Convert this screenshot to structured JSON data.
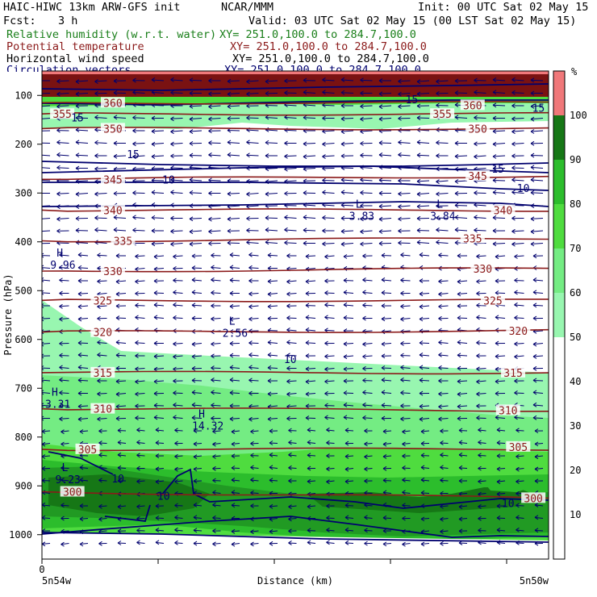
{
  "header": {
    "model": "HAIC-HIWC 13km ARW-GFS init",
    "center": "NCAR/MMM",
    "init": "Init: 00 UTC Sat 02 May 15",
    "fcst_label": "Fcst:",
    "fcst_value": "3 h",
    "valid": "Valid: 03 UTC Sat 02 May 15 (00 LST Sat 02 May 15)",
    "fields": [
      {
        "name": "Relative humidity (w.r.t. water)",
        "xy": "XY= 251.0,100.0 to 284.7,100.0"
      },
      {
        "name": "Potential temperature",
        "xy": "XY= 251.0,100.0 to 284.7,100.0"
      },
      {
        "name": "Horizontal wind speed",
        "xy": "XY= 251.0,100.0 to 284.7,100.0"
      },
      {
        "name": "Circulation vectors",
        "xy": "XY= 251.0,100.0 to 284.7,100.0"
      }
    ]
  },
  "colors": {
    "rh_green_ramp": [
      "#98f6b0",
      "#74ec83",
      "#4fdc3f",
      "#2cbd2c",
      "#219a23",
      "#167716"
    ],
    "rh_high": [
      "#7a1212",
      "#f0787a"
    ],
    "theta": "#8b1a1a",
    "wind": "#00006e",
    "text_black": "#000000"
  },
  "chart_data": {
    "type": "cross-section",
    "x_axis": {
      "label": "Distance (km)",
      "ticks": [
        "0"
      ],
      "left_label": "5n54w",
      "right_label": "5n50w"
    },
    "y_axis": {
      "label": "Pressure (hPa)",
      "ticks": [
        100,
        200,
        300,
        400,
        500,
        600,
        700,
        800,
        900,
        1000
      ],
      "ylim": [
        1050,
        50
      ]
    },
    "colorbar": {
      "unit": "%",
      "ticks": [
        10,
        20,
        30,
        40,
        50,
        60,
        70,
        80,
        90,
        100
      ]
    },
    "theta_contours": [
      {
        "label": "300",
        "p_left": 912,
        "p_right": 925,
        "label_positions": [
          {
            "x": 0.06,
            "p": 912
          },
          {
            "x": 0.97,
            "p": 925
          }
        ]
      },
      {
        "label": "305",
        "p_left": 825,
        "p_right": 825,
        "label_positions": [
          {
            "x": 0.09,
            "p": 825
          },
          {
            "x": 0.94,
            "p": 820
          }
        ]
      },
      {
        "label": "310",
        "p_left": 742,
        "p_right": 745,
        "label_positions": [
          {
            "x": 0.12,
            "p": 742
          },
          {
            "x": 0.92,
            "p": 745
          }
        ]
      },
      {
        "label": "315",
        "p_left": 668,
        "p_right": 668,
        "label_positions": [
          {
            "x": 0.12,
            "p": 668
          },
          {
            "x": 0.93,
            "p": 668
          }
        ]
      },
      {
        "label": "320",
        "p_left": 585,
        "p_right": 582,
        "label_positions": [
          {
            "x": 0.12,
            "p": 585
          },
          {
            "x": 0.94,
            "p": 582
          }
        ]
      },
      {
        "label": "325",
        "p_left": 520,
        "p_right": 520,
        "label_positions": [
          {
            "x": 0.12,
            "p": 520
          },
          {
            "x": 0.89,
            "p": 520
          }
        ]
      },
      {
        "label": "330",
        "p_left": 460,
        "p_right": 455,
        "label_positions": [
          {
            "x": 0.14,
            "p": 460
          },
          {
            "x": 0.87,
            "p": 455
          }
        ]
      },
      {
        "label": "335",
        "p_left": 398,
        "p_right": 393,
        "label_positions": [
          {
            "x": 0.16,
            "p": 398
          },
          {
            "x": 0.85,
            "p": 393
          }
        ]
      },
      {
        "label": "340",
        "p_left": 335,
        "p_right": 335,
        "label_positions": [
          {
            "x": 0.14,
            "p": 335
          },
          {
            "x": 0.91,
            "p": 335
          }
        ]
      },
      {
        "label": "345",
        "p_left": 272,
        "p_right": 265,
        "label_positions": [
          {
            "x": 0.14,
            "p": 272
          },
          {
            "x": 0.86,
            "p": 265
          }
        ]
      },
      {
        "label": "350",
        "p_left": 168,
        "p_right": 168,
        "label_positions": [
          {
            "x": 0.14,
            "p": 168
          },
          {
            "x": 0.86,
            "p": 168
          }
        ]
      },
      {
        "label": "355",
        "p_left": 138,
        "p_right": 138,
        "label_positions": [
          {
            "x": 0.04,
            "p": 138
          },
          {
            "x": 0.79,
            "p": 138
          }
        ]
      },
      {
        "label": "360",
        "p_left": 115,
        "p_right": 115,
        "label_positions": [
          {
            "x": 0.14,
            "p": 115
          },
          {
            "x": 0.85,
            "p": 120
          }
        ]
      }
    ],
    "wind_contour_labels": [
      {
        "label": "15",
        "x": 0.07,
        "p": 145
      },
      {
        "label": "15",
        "x": 0.18,
        "p": 220
      },
      {
        "label": "10",
        "x": 0.25,
        "p": 272
      },
      {
        "label": "15",
        "x": 0.73,
        "p": 108
      },
      {
        "label": "15",
        "x": 0.98,
        "p": 125
      },
      {
        "label": "15",
        "x": 0.9,
        "p": 250
      },
      {
        "label": "10",
        "x": 0.95,
        "p": 290
      },
      {
        "label": "10",
        "x": 0.49,
        "p": 640
      },
      {
        "label": "10",
        "x": 0.15,
        "p": 885
      },
      {
        "label": "10",
        "x": 0.24,
        "p": 920
      },
      {
        "label": "10",
        "x": 0.92,
        "p": 935
      }
    ],
    "extrema": [
      {
        "type": "L",
        "value": "3.83",
        "x": 0.6,
        "p": 330
      },
      {
        "type": "L",
        "value": "3.84",
        "x": 0.76,
        "p": 330
      },
      {
        "type": "H",
        "value": "9.96",
        "x": 0.01,
        "p": 430
      },
      {
        "type": "L",
        "value": "2.56",
        "x": 0.35,
        "p": 570
      },
      {
        "type": "H",
        "value": "3.31",
        "x": 0.0,
        "p": 715
      },
      {
        "type": "H",
        "value": "14.32",
        "x": 0.29,
        "p": 760
      },
      {
        "type": "L",
        "value": "9.23",
        "x": 0.02,
        "p": 870
      }
    ]
  }
}
